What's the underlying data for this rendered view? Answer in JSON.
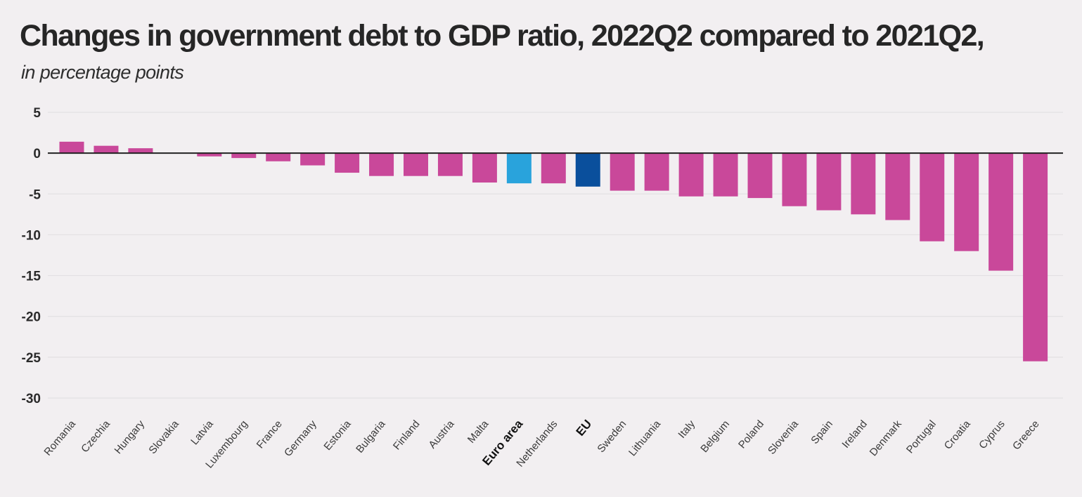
{
  "chart_data": {
    "type": "bar",
    "title": "Changes in government debt to GDP ratio, 2022Q2 compared to 2021Q2,",
    "subtitle": "in percentage points",
    "xlabel": "",
    "ylabel": "",
    "ylim": [
      -30,
      5
    ],
    "yticks": [
      5,
      0,
      -5,
      -10,
      -15,
      -20,
      -25,
      -30
    ],
    "grid": true,
    "categories": [
      "Romania",
      "Czechia",
      "Hungary",
      "Slovakia",
      "Latvia",
      "Luxembourg",
      "France",
      "Germany",
      "Estonia",
      "Bulgaria",
      "Finland",
      "Austria",
      "Malta",
      "Euro area",
      "Netherlands",
      "EU",
      "Sweden",
      "Lithuania",
      "Italy",
      "Belgium",
      "Poland",
      "Slovenia",
      "Spain",
      "Ireland",
      "Denmark",
      "Portugal",
      "Croatia",
      "Cyprus",
      "Greece"
    ],
    "values": [
      1.4,
      0.9,
      0.6,
      0.0,
      -0.4,
      -0.6,
      -1.0,
      -1.5,
      -2.4,
      -2.8,
      -2.8,
      -2.8,
      -3.6,
      -3.7,
      -3.7,
      -4.1,
      -4.6,
      -4.6,
      -5.3,
      -5.3,
      -5.5,
      -6.5,
      -7.0,
      -7.5,
      -8.2,
      -10.8,
      -12.0,
      -14.4,
      -25.5
    ],
    "highlight": {
      "Euro area": "#29a3dc",
      "EU": "#0a4f9c"
    },
    "bold_labels": [
      "Euro area",
      "EU"
    ]
  },
  "colors": {
    "bar": "#c9489a",
    "background": "#f2eff1",
    "grid": "#e3e0e3",
    "zero_line": "#222222"
  }
}
